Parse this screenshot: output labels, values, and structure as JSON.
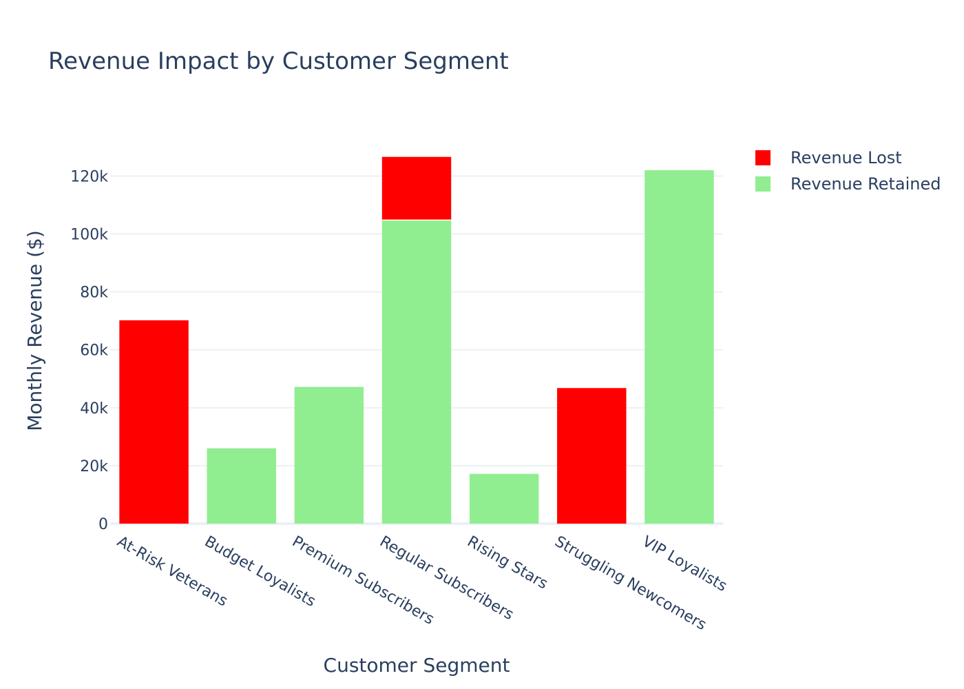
{
  "chart_data": {
    "type": "bar",
    "barmode": "stack",
    "title": "Revenue Impact by Customer Segment",
    "xlabel": "Customer Segment",
    "ylabel": "Monthly Revenue ($)",
    "ylim": [
      0,
      132000
    ],
    "yticks": [
      0,
      20000,
      40000,
      60000,
      80000,
      100000,
      120000
    ],
    "ytick_labels": [
      "0",
      "20k",
      "40k",
      "60k",
      "80k",
      "100k",
      "120k"
    ],
    "categories": [
      "At-Risk Veterans",
      "Budget Loyalists",
      "Premium Subscribers",
      "Regular Subscribers",
      "Rising Stars",
      "Struggling Newcomers",
      "VIP Loyalists"
    ],
    "series": [
      {
        "name": "Revenue Retained",
        "color": "#90ee90",
        "values": [
          0,
          26000,
          47200,
          104800,
          17200,
          0,
          122000
        ]
      },
      {
        "name": "Revenue Lost",
        "color": "#ff0000",
        "values": [
          70200,
          0,
          0,
          21800,
          0,
          46800,
          0
        ]
      }
    ],
    "legend": {
      "placement": "top-right",
      "order": [
        "Revenue Lost",
        "Revenue Retained"
      ]
    },
    "grid": true
  }
}
